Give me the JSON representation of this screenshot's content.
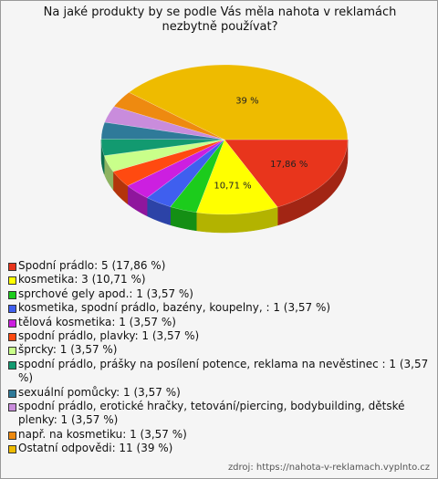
{
  "chart_data": {
    "type": "pie",
    "title": "Na jaké produkty by se podle Vás měla nahota v reklamách nezbytně používat?",
    "categories": [
      "Spodní prádlo: 5 (17,86 %)",
      "kosmetika: 3 (10,71 %)",
      "sprchové gely apod.: 1 (3,57 %)",
      "kosmetika, spodní prádlo, bazény, koupelny, : 1 (3,57 %)",
      "tělová kosmetika: 1 (3,57 %)",
      "spodní prádlo, plavky: 1 (3,57 %)",
      "šprcky: 1 (3,57 %)",
      "spodní prádlo, prášky na posílení potence, reklama na nevěstinec : 1 (3,57 %)",
      "sexuální pomůcky: 1 (3,57 %)",
      "spodní prádlo, erotické hračky, tetování/piercing, bodybuilding, dětské plenky: 1 (3,57 %)",
      "např. na kosmetiku: 1 (3,57 %)",
      "Ostatní odpovědi: 11 (39 %)"
    ],
    "values": [
      17.86,
      10.71,
      3.57,
      3.57,
      3.57,
      3.57,
      3.57,
      3.57,
      3.57,
      3.57,
      3.57,
      39
    ],
    "value_labels": [
      "17,86 %",
      "10,71 %",
      null,
      null,
      null,
      null,
      null,
      null,
      null,
      null,
      null,
      "39 %"
    ],
    "colors": [
      "#e8351c",
      "#ffff00",
      "#1ccc1c",
      "#3f5fef",
      "#cc1fe0",
      "#ff4a10",
      "#c9ff8a",
      "#129a70",
      "#2f7a99",
      "#c98cdc",
      "#ee8a10",
      "#eebb00"
    ],
    "source": "zdroj: https://nahota-v-reklamach.vyplnto.cz"
  }
}
